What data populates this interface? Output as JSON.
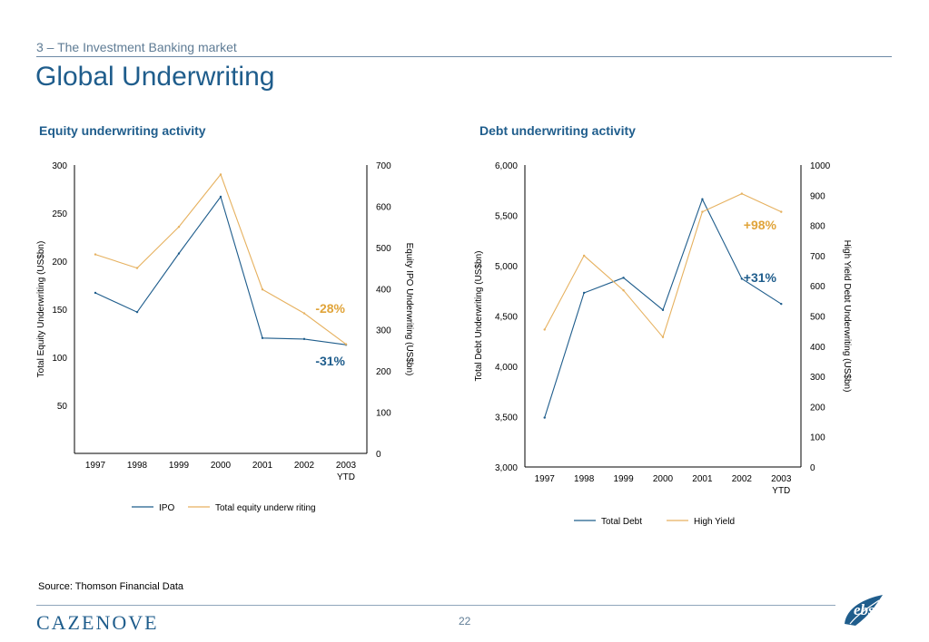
{
  "header": {
    "section": "3 – The Investment Banking market",
    "title": "Global Underwriting"
  },
  "footer": {
    "source": "Source: Thomson Financial Data",
    "brand": "CAZENOVE",
    "page": "22",
    "logo_text": "ebs"
  },
  "colors": {
    "primary": "#1f5d8c",
    "accent": "#e6b15f",
    "annot_neg": "#e0a43a"
  },
  "chart_data": [
    {
      "type": "line",
      "title": "Equity underwriting activity",
      "categories": [
        "1997",
        "1998",
        "1999",
        "2000",
        "2001",
        "2002",
        "2003\nYTD"
      ],
      "ylabel": "Total Equity Underwriting (US$bn)",
      "ylim": [
        0,
        300
      ],
      "yticks": [
        50,
        100,
        150,
        200,
        250,
        300
      ],
      "y2label": "Equity IPO Underwriting (US$bn)",
      "y2lim": [
        0,
        700
      ],
      "y2ticks": [
        0,
        100,
        200,
        300,
        400,
        500,
        600,
        700
      ],
      "legend_position": "bottom",
      "series": [
        {
          "name": "IPO",
          "axis": "left",
          "color": "#1f5d8c",
          "values": [
            167,
            147,
            208,
            267,
            120,
            119,
            113
          ]
        },
        {
          "name": "Total equity underw riting",
          "axis": "right",
          "color": "#e6b15f",
          "values": [
            483,
            450,
            550,
            677,
            398,
            340,
            265
          ]
        }
      ],
      "annotations": [
        {
          "text": "-28%",
          "color": "#e0a43a"
        },
        {
          "text": "-31%",
          "color": "#1f5d8c"
        }
      ]
    },
    {
      "type": "line",
      "title": "Debt underwriting activity",
      "categories": [
        "1997",
        "1998",
        "1999",
        "2000",
        "2001",
        "2002",
        "2003\nYTD"
      ],
      "ylabel": "Total Debt Underwriting (US$bn)",
      "ylim": [
        3000,
        6000
      ],
      "yticks": [
        "3,000",
        "3,500",
        "4,000",
        "4,500",
        "5,000",
        "5,500",
        "6,000"
      ],
      "y2label": "High Yield Debt Underwriting (US$bn)",
      "y2lim": [
        0,
        1000
      ],
      "y2ticks": [
        0,
        100,
        200,
        300,
        400,
        500,
        600,
        700,
        800,
        900,
        1000
      ],
      "legend_position": "bottom",
      "series": [
        {
          "name": "Total Debt",
          "axis": "left",
          "color": "#1f5d8c",
          "values": [
            3490,
            4730,
            4880,
            4560,
            5660,
            4870,
            4620
          ]
        },
        {
          "name": "High Yield",
          "axis": "right",
          "color": "#e6b15f",
          "values": [
            455,
            700,
            585,
            430,
            845,
            905,
            845
          ]
        }
      ],
      "annotations": [
        {
          "text": "+98%",
          "color": "#e0a43a"
        },
        {
          "text": "+31%",
          "color": "#1f5d8c"
        }
      ]
    }
  ]
}
